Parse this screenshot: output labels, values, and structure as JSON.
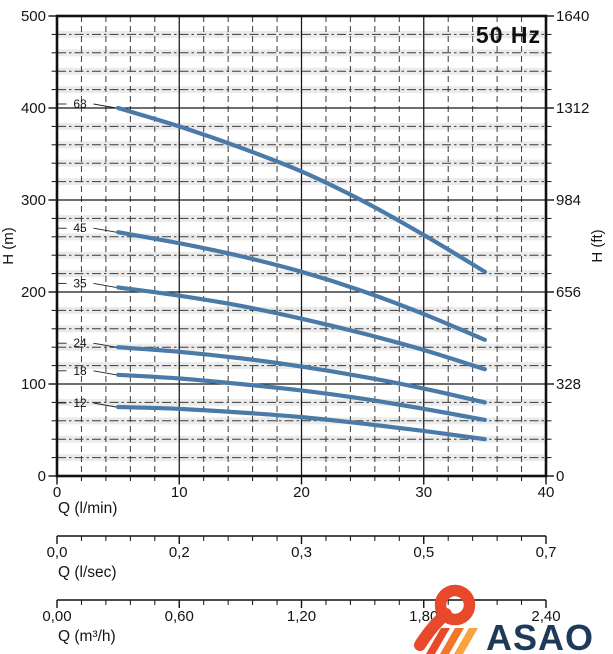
{
  "logo": {
    "text": "ASAO",
    "colors": {
      "primary": "#e8492b",
      "secondary": "#f1772b",
      "tertiary": "#f8a33d",
      "text": "#1e3a5a"
    }
  },
  "chart_data": {
    "type": "line",
    "title": "",
    "annotation": "50 Hz",
    "grid": true,
    "legend": "none (curves labeled at left edge with number of pump stages)",
    "curve_color": "#4a7aa8",
    "x_unit": "l/min",
    "y_unit": "m",
    "x_axis_primary": {
      "label": "Q (l/min)",
      "min": 0,
      "max": 40,
      "major_tick_values": [
        0,
        10,
        20,
        30,
        40
      ],
      "major_tick_labels": [
        "0",
        "10",
        "20",
        "30",
        "40"
      ],
      "minor_step": 2
    },
    "y_axis_left": {
      "label": "H (m)",
      "min": 0,
      "max": 500,
      "major_tick_values": [
        0,
        100,
        200,
        300,
        400,
        500
      ],
      "major_tick_labels": [
        "0",
        "100",
        "200",
        "300",
        "400",
        "500"
      ],
      "minor_step": 20
    },
    "y_axis_right": {
      "label": "H (ft)",
      "major_tick_labels": [
        "0",
        "328",
        "656",
        "984",
        "1312",
        "1640"
      ]
    },
    "x_axis_secondary": [
      {
        "label": "Q (l/sec)",
        "tick_labels": [
          "0,0",
          "0,2",
          "0,3",
          "0,5",
          "0,7"
        ]
      },
      {
        "label": "Q (m³/h)",
        "tick_labels": [
          "0,00",
          "0,60",
          "1,20",
          "1,80",
          "2,40"
        ]
      }
    ],
    "series": [
      {
        "name": "68",
        "points": [
          [
            5,
            400
          ],
          [
            10,
            380
          ],
          [
            15,
            357
          ],
          [
            20,
            331
          ],
          [
            25,
            299
          ],
          [
            30,
            262
          ],
          [
            35,
            222
          ]
        ]
      },
      {
        "name": "45",
        "points": [
          [
            5,
            265
          ],
          [
            10,
            253
          ],
          [
            15,
            239
          ],
          [
            20,
            222
          ],
          [
            25,
            201
          ],
          [
            30,
            176
          ],
          [
            35,
            148
          ]
        ]
      },
      {
        "name": "35",
        "points": [
          [
            5,
            205
          ],
          [
            10,
            196
          ],
          [
            15,
            185
          ],
          [
            20,
            171
          ],
          [
            25,
            155
          ],
          [
            30,
            137
          ],
          [
            35,
            116
          ]
        ]
      },
      {
        "name": "24",
        "points": [
          [
            5,
            140
          ],
          [
            10,
            135
          ],
          [
            15,
            128
          ],
          [
            20,
            119
          ],
          [
            25,
            108
          ],
          [
            30,
            95
          ],
          [
            35,
            80
          ]
        ]
      },
      {
        "name": "18",
        "points": [
          [
            5,
            110
          ],
          [
            10,
            106
          ],
          [
            15,
            100
          ],
          [
            20,
            93
          ],
          [
            25,
            84
          ],
          [
            30,
            73
          ],
          [
            35,
            61
          ]
        ]
      },
      {
        "name": "12",
        "points": [
          [
            5,
            75
          ],
          [
            10,
            73
          ],
          [
            15,
            69
          ],
          [
            20,
            64
          ],
          [
            25,
            57
          ],
          [
            30,
            49
          ],
          [
            35,
            40
          ]
        ]
      }
    ]
  }
}
